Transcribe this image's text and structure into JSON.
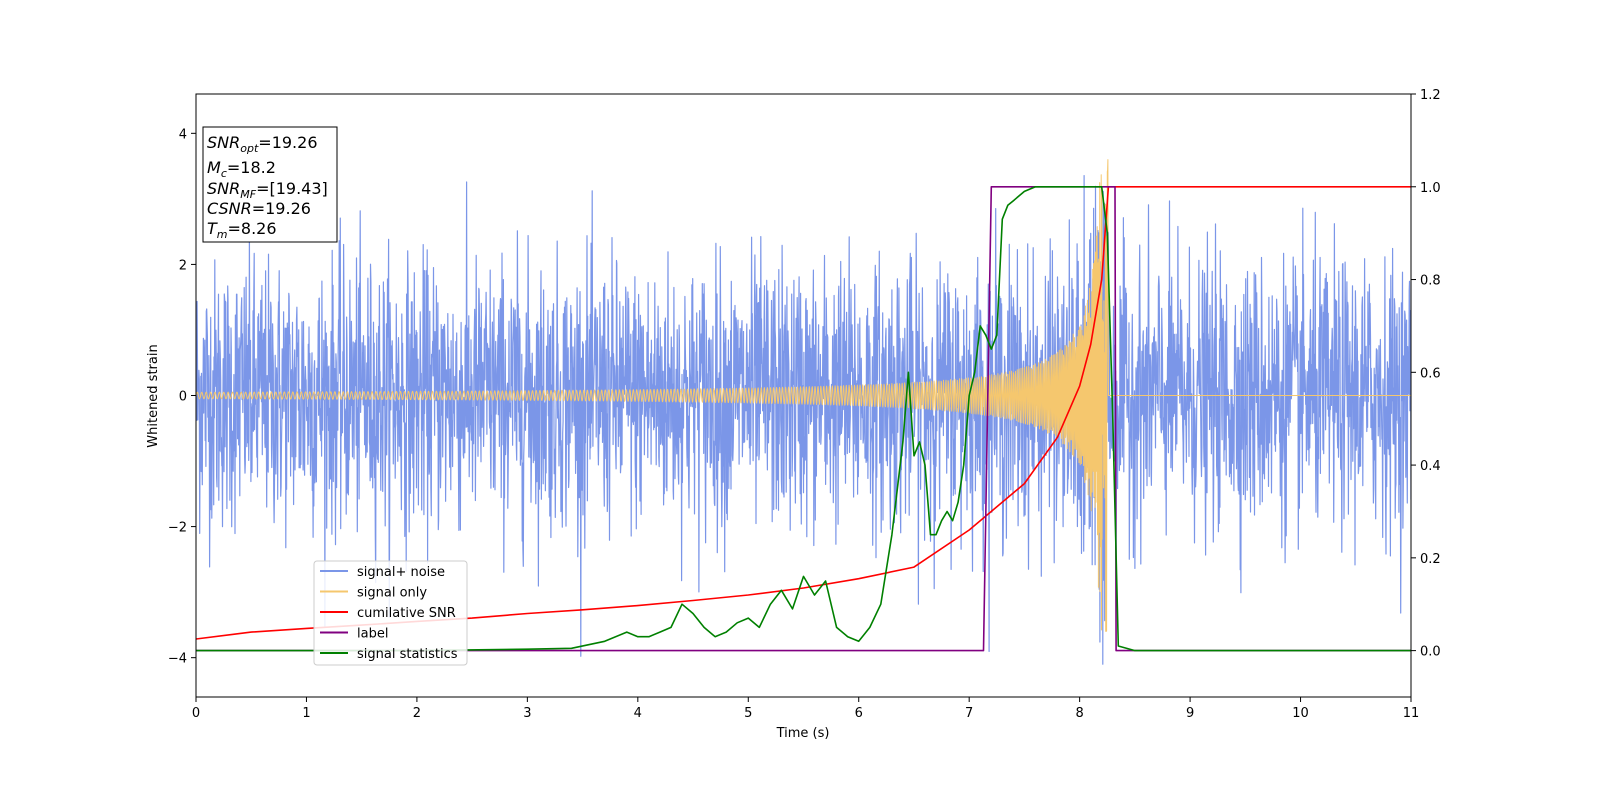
{
  "chart_data": {
    "type": "line",
    "xlabel": "Time (s)",
    "ylabel": "Whitened strain",
    "xlim": [
      0,
      11
    ],
    "ylim_left": [
      -4.6,
      4.6
    ],
    "ylim_right": [
      -0.1,
      1.2
    ],
    "x_ticks": [
      "0",
      "1",
      "2",
      "3",
      "4",
      "5",
      "6",
      "7",
      "8",
      "9",
      "10",
      "11"
    ],
    "y_ticks_left": [
      "4",
      "2",
      "0",
      "−2",
      "−4"
    ],
    "y_ticks_right": [
      "1.2",
      "1.0",
      "0.8",
      "0.6",
      "0.4",
      "0.2",
      "0.0"
    ],
    "grid": false,
    "legend_position": "lower-left",
    "info_box": {
      "position": "top-left",
      "lines": [
        {
          "sym": "SNR",
          "sub": "opt",
          "value": "=19.26"
        },
        {
          "sym": "M",
          "sub": "c",
          "value": "=18.2"
        },
        {
          "sym": "SNR",
          "sub": "MF",
          "value": "=[19.43]"
        },
        {
          "sym": "CSNR",
          "sub": "",
          "value": "=19.26"
        },
        {
          "sym": "T",
          "sub": "m",
          "value": "=8.26"
        }
      ]
    },
    "series": [
      {
        "name": "signal+ noise",
        "axis": "left",
        "color": "#7b96e8",
        "kind": "noise",
        "approx_std": 1.0,
        "amplitude_range": [
          -4.1,
          4.2
        ],
        "x_range": [
          0,
          11
        ]
      },
      {
        "name": "signal only",
        "axis": "left",
        "color": "#f5c76e",
        "kind": "chirp",
        "merger_time": 8.26,
        "start_amplitude": 0.05,
        "peak_amplitude": 3.6,
        "x_range": [
          0,
          11
        ]
      },
      {
        "name": "cumilative SNR",
        "axis": "right",
        "color": "#ff0000",
        "x": [
          0,
          0.5,
          1,
          1.5,
          2,
          2.5,
          3,
          3.5,
          4,
          4.5,
          5,
          5.5,
          6,
          6.5,
          7,
          7.5,
          7.8,
          8.0,
          8.1,
          8.2,
          8.26,
          11
        ],
        "y": [
          0.025,
          0.04,
          0.048,
          0.055,
          0.063,
          0.07,
          0.08,
          0.088,
          0.097,
          0.108,
          0.12,
          0.135,
          0.155,
          0.18,
          0.26,
          0.36,
          0.46,
          0.57,
          0.66,
          0.8,
          1.0,
          1.0
        ]
      },
      {
        "name": "label",
        "axis": "right",
        "color": "#800080",
        "x": [
          0,
          7.13,
          7.2,
          8.32,
          8.33,
          11
        ],
        "y": [
          0,
          0,
          1,
          1,
          0,
          0
        ]
      },
      {
        "name": "signal statistics",
        "axis": "right",
        "color": "#008000",
        "x": [
          0,
          2,
          3,
          3.4,
          3.7,
          3.9,
          4.0,
          4.1,
          4.2,
          4.3,
          4.4,
          4.5,
          4.6,
          4.7,
          4.8,
          4.9,
          5.0,
          5.1,
          5.2,
          5.3,
          5.4,
          5.5,
          5.6,
          5.7,
          5.8,
          5.9,
          6.0,
          6.1,
          6.2,
          6.3,
          6.4,
          6.45,
          6.5,
          6.55,
          6.6,
          6.65,
          6.7,
          6.75,
          6.8,
          6.85,
          6.9,
          6.95,
          7.0,
          7.05,
          7.1,
          7.15,
          7.2,
          7.25,
          7.3,
          7.35,
          7.4,
          7.45,
          7.5,
          7.6,
          7.7,
          7.8,
          7.9,
          8.0,
          8.1,
          8.2,
          8.25,
          8.3,
          8.35,
          8.5,
          11
        ],
        "y": [
          0,
          0,
          0.003,
          0.005,
          0.02,
          0.04,
          0.03,
          0.03,
          0.04,
          0.05,
          0.1,
          0.08,
          0.05,
          0.03,
          0.04,
          0.06,
          0.07,
          0.05,
          0.1,
          0.13,
          0.09,
          0.16,
          0.12,
          0.15,
          0.05,
          0.03,
          0.02,
          0.05,
          0.1,
          0.25,
          0.45,
          0.6,
          0.42,
          0.45,
          0.4,
          0.25,
          0.25,
          0.28,
          0.3,
          0.28,
          0.32,
          0.4,
          0.55,
          0.6,
          0.7,
          0.68,
          0.65,
          0.68,
          0.93,
          0.96,
          0.97,
          0.98,
          0.99,
          1.0,
          1.0,
          1.0,
          1.0,
          1.0,
          1.0,
          1.0,
          0.9,
          0.5,
          0.01,
          0.0,
          0.0
        ]
      }
    ]
  }
}
